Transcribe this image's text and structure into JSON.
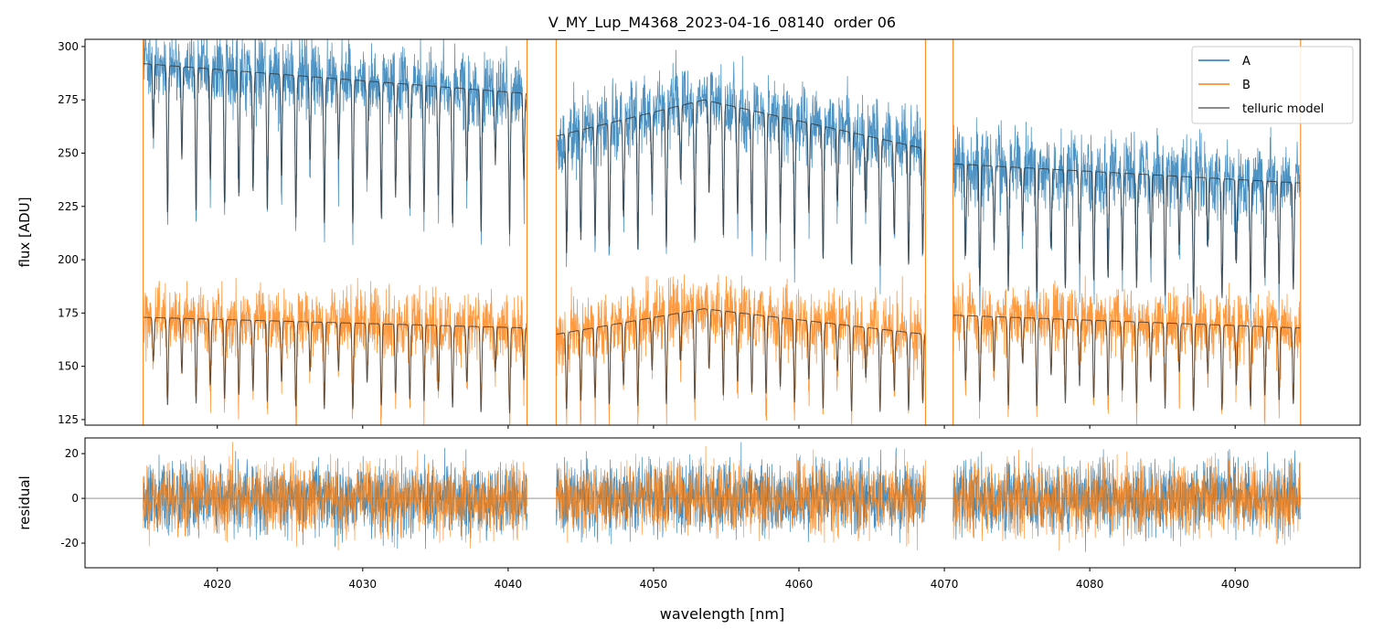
{
  "chart_data": {
    "type": "line",
    "title": "V_MY_Lup_M4368_2023-04-16_08140  order 06",
    "xlabel": "wavelength [nm]",
    "xlim": [
      4010.9,
      4098.6
    ],
    "xticks": [
      4020,
      4030,
      4040,
      4050,
      4060,
      4070,
      4080,
      4090
    ],
    "panels": [
      {
        "name": "flux",
        "ylabel": "flux [ADU]",
        "ylim": [
          122.4,
          303.4
        ],
        "yticks": [
          125,
          150,
          175,
          200,
          225,
          250,
          275,
          300
        ]
      },
      {
        "name": "residual",
        "ylabel": "residual",
        "ylim": [
          -31,
          27
        ],
        "yticks": [
          -20,
          0,
          20
        ]
      }
    ],
    "legend": {
      "placement": "top-right",
      "entries": [
        "A",
        "B",
        "telluric model"
      ]
    },
    "segments": [
      {
        "start": 4014.9,
        "end": 4041.3,
        "A_continuum": [
          292,
          278
        ],
        "B_continuum": [
          173,
          168
        ]
      },
      {
        "start": 4043.3,
        "end": 4068.7,
        "A_continuum": [
          258,
          275,
          252
        ],
        "B_continuum": [
          165,
          177,
          165
        ]
      },
      {
        "start": 4070.6,
        "end": 4094.5,
        "A_continuum": [
          245,
          236
        ],
        "B_continuum": [
          174,
          168
        ]
      }
    ],
    "telluric_lines": {
      "first_nm": 4015.6,
      "spacing_nm": 0.98,
      "typical_depth_fraction": 0.2
    },
    "noise": {
      "A_flux_sigma": 9,
      "B_flux_sigma": 8,
      "residual_sigma": 8
    },
    "colors": {
      "A": "#1f77b4",
      "B": "#ff7f0e",
      "model": "#333333"
    }
  }
}
